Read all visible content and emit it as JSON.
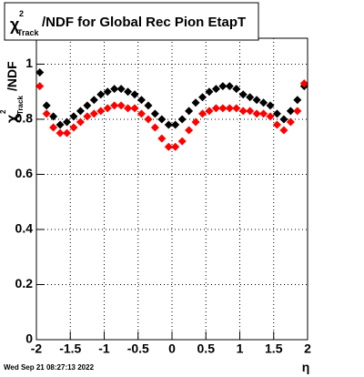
{
  "chart_data": {
    "type": "scatter",
    "title": {
      "symbol": "χ",
      "sup": "2",
      "sub": "Track",
      "rest": "/NDF for Global Rec Pion EtapT"
    },
    "y_label": {
      "symbol": "χ",
      "sup": "2",
      "sub": "Track",
      "rest": "/NDF"
    },
    "x_label": "η",
    "footer": "Wed Sep 21 08:27:13 2022",
    "x": [
      -1.95,
      -1.85,
      -1.75,
      -1.65,
      -1.55,
      -1.45,
      -1.35,
      -1.25,
      -1.15,
      -1.05,
      -0.95,
      -0.85,
      -0.75,
      -0.65,
      -0.55,
      -0.45,
      -0.35,
      -0.25,
      -0.15,
      -0.05,
      0.05,
      0.15,
      0.25,
      0.35,
      0.45,
      0.55,
      0.65,
      0.75,
      0.85,
      0.95,
      1.05,
      1.15,
      1.25,
      1.35,
      1.45,
      1.55,
      1.65,
      1.75,
      1.85,
      1.95
    ],
    "series": [
      {
        "color": "#000000",
        "values": [
          0.97,
          0.85,
          0.81,
          0.78,
          0.79,
          0.81,
          0.83,
          0.85,
          0.87,
          0.89,
          0.9,
          0.91,
          0.91,
          0.9,
          0.89,
          0.87,
          0.85,
          0.82,
          0.8,
          0.78,
          0.78,
          0.8,
          0.83,
          0.86,
          0.88,
          0.9,
          0.91,
          0.92,
          0.92,
          0.91,
          0.89,
          0.88,
          0.87,
          0.86,
          0.85,
          0.82,
          0.8,
          0.83,
          0.87,
          0.92
        ]
      },
      {
        "color": "#ff0000",
        "values": [
          0.92,
          0.82,
          0.77,
          0.75,
          0.75,
          0.77,
          0.79,
          0.81,
          0.82,
          0.83,
          0.84,
          0.85,
          0.85,
          0.84,
          0.84,
          0.82,
          0.8,
          0.77,
          0.73,
          0.7,
          0.7,
          0.72,
          0.76,
          0.79,
          0.82,
          0.83,
          0.84,
          0.84,
          0.84,
          0.84,
          0.83,
          0.83,
          0.82,
          0.82,
          0.81,
          0.78,
          0.76,
          0.79,
          0.83,
          0.93
        ]
      }
    ],
    "xlim": [
      -2,
      2
    ],
    "xticks": [
      -2,
      -1.5,
      -1,
      -0.5,
      0,
      0.5,
      1,
      1.5,
      2
    ],
    "ylim": [
      0,
      1.094
    ],
    "yticks": [
      0,
      0.2,
      0.4,
      0.6,
      0.8,
      1
    ],
    "grid": true
  }
}
